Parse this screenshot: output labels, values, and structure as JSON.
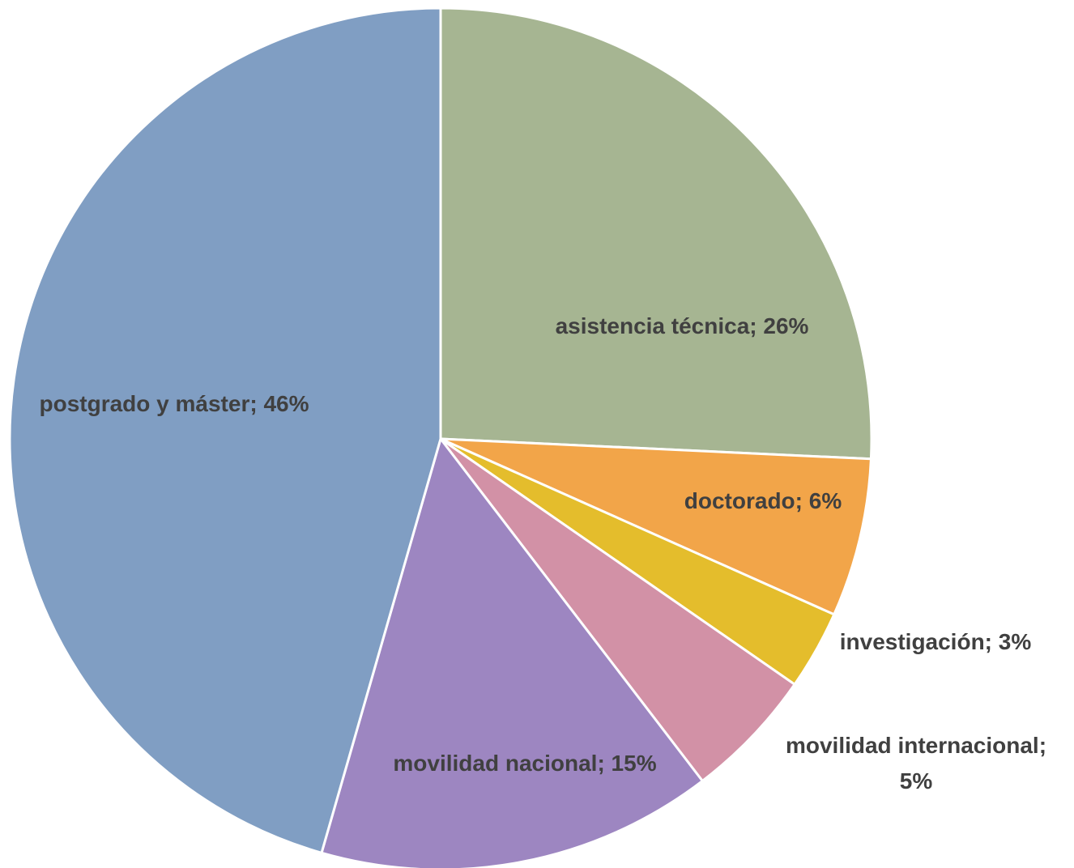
{
  "chart_data": {
    "type": "pie",
    "title": "",
    "start_angle_deg": 0,
    "direction": "clockwise",
    "legend": "none",
    "slices": [
      {
        "name": "asistencia técnica",
        "value": 26,
        "label": "asistencia técnica; 26%",
        "color": "#a6b592"
      },
      {
        "name": "doctorado",
        "value": 6,
        "label": "doctorado; 6%",
        "color": "#f2a549"
      },
      {
        "name": "investigación",
        "value": 3,
        "label": "investigación; 3%",
        "color": "#e4bd2c"
      },
      {
        "name": "movilidad internacional",
        "value": 5,
        "label_lines": [
          "movilidad internacional;",
          "5%"
        ],
        "color": "#d291a6"
      },
      {
        "name": "movilidad nacional",
        "value": 15,
        "label": "movilidad nacional; 15%",
        "color": "#9d86c1"
      },
      {
        "name": "postgrado y máster",
        "value": 46,
        "label": "postgrado y máster; 46%",
        "color": "#809ec3"
      }
    ]
  }
}
